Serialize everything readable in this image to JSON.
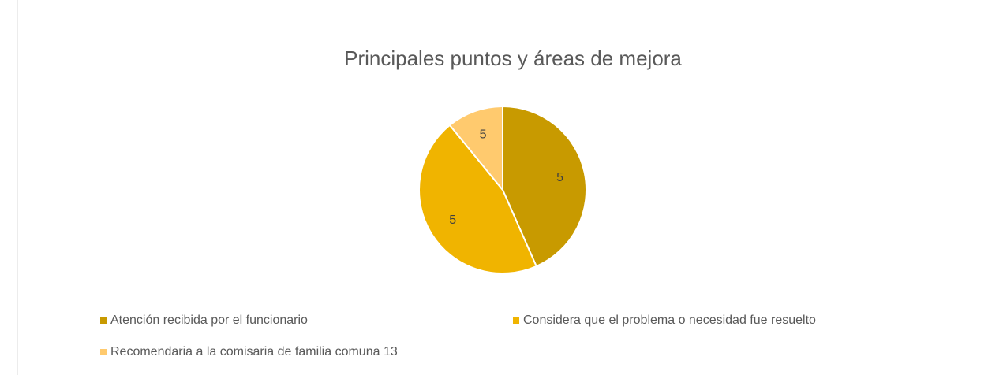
{
  "chart_data": {
    "type": "pie",
    "title": "Principales puntos y áreas de mejora",
    "categories": [
      "Atención recibida por el funcionario",
      "Considera que el problema o necesidad fue resuelto",
      "Recomendaria a la comisaria de familia comuna 13"
    ],
    "values": [
      43.4,
      45.7,
      10.9
    ],
    "value_labels": [
      "5",
      "5",
      "5"
    ],
    "colors": [
      "#c89a00",
      "#f0b400",
      "#ffca6e"
    ],
    "legend": "bottom"
  }
}
